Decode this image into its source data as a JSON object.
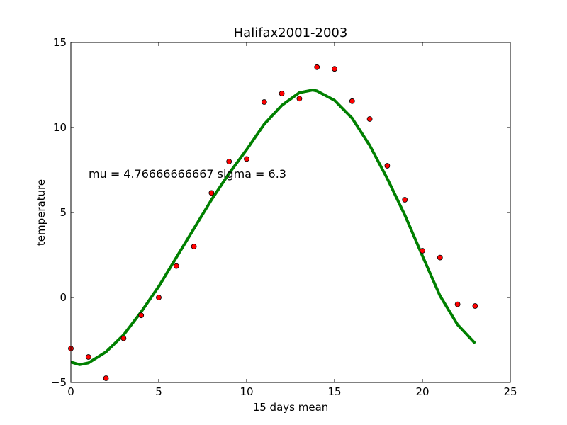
{
  "chart_data": {
    "type": "scatter",
    "title": "Halifax2001-2003",
    "xlabel": "15 days mean",
    "ylabel": "temperature",
    "xlim": [
      0,
      25
    ],
    "ylim": [
      -5,
      15
    ],
    "xticks": [
      0,
      5,
      10,
      15,
      20,
      25
    ],
    "yticks": [
      -5,
      0,
      5,
      10,
      15
    ],
    "xtick_labels": [
      "0",
      "5",
      "10",
      "15",
      "20",
      "25"
    ],
    "ytick_labels": [
      "−5",
      "0",
      "5",
      "10",
      "15"
    ],
    "grid": false,
    "annotation": "mu = 4.76666666667 sigma = 6.3",
    "points": {
      "x": [
        0,
        1,
        2,
        3,
        4,
        5,
        6,
        7,
        8,
        9,
        10,
        11,
        12,
        13,
        14,
        15,
        16,
        17,
        18,
        19,
        20,
        21,
        22,
        23
      ],
      "y": [
        -3.0,
        -3.5,
        -4.75,
        -2.4,
        -1.05,
        0.0,
        1.85,
        3.0,
        6.15,
        8.0,
        8.15,
        11.5,
        12.0,
        11.7,
        13.55,
        13.45,
        11.55,
        10.5,
        7.75,
        5.75,
        2.75,
        2.35,
        -0.4,
        -0.5
      ],
      "color": "#ff0000"
    },
    "fit_curve": {
      "x": [
        0,
        0.5,
        1,
        2,
        3,
        4,
        5,
        6,
        7,
        8,
        9,
        10,
        11,
        12,
        13,
        13.75,
        14,
        15,
        16,
        17,
        18,
        19,
        20,
        21,
        22,
        23
      ],
      "y": [
        -3.8,
        -3.95,
        -3.85,
        -3.2,
        -2.2,
        -0.85,
        0.65,
        2.35,
        4.05,
        5.75,
        7.3,
        8.7,
        10.2,
        11.3,
        12.05,
        12.2,
        12.15,
        11.6,
        10.55,
        8.95,
        7.0,
        4.85,
        2.45,
        0.1,
        -1.6,
        -2.7
      ],
      "color": "#008000"
    }
  }
}
